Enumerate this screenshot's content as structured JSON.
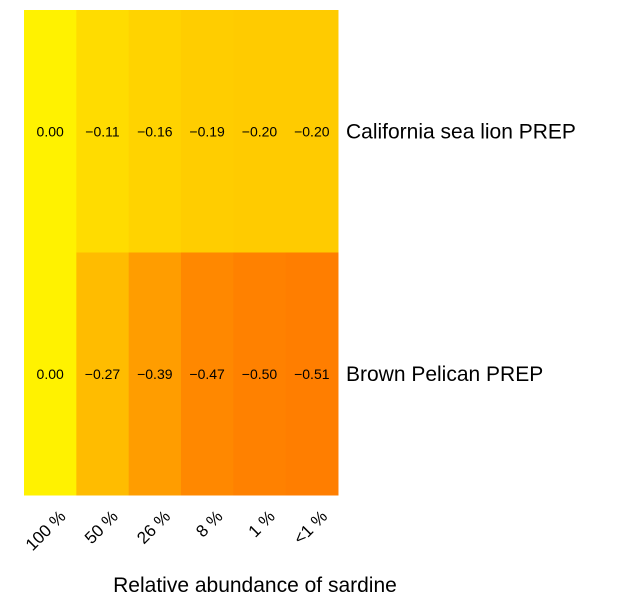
{
  "chart_data": {
    "type": "heatmap",
    "title": "",
    "xlabel": "Relative abundance of sardine",
    "ylabel": "",
    "x_categories": [
      "100 %",
      "50 %",
      "26 %",
      "8 %",
      "1 %",
      "<1 %"
    ],
    "y_categories": [
      "California sea lion PREP",
      "Brown Pelican PREP"
    ],
    "values": [
      [
        0.0,
        -0.11,
        -0.16,
        -0.19,
        -0.2,
        -0.2
      ],
      [
        0.0,
        -0.27,
        -0.39,
        -0.47,
        -0.5,
        -0.51
      ]
    ],
    "value_labels": [
      [
        "0.00",
        "−0.11",
        "−0.16",
        "−0.19",
        "−0.20",
        "−0.20"
      ],
      [
        "0.00",
        "−0.27",
        "−0.39",
        "−0.47",
        "−0.50",
        "−0.51"
      ]
    ],
    "color_scale": {
      "low_value": -0.51,
      "high_value": 0.0,
      "low_color": "#ff7e00",
      "mid_color": "#ffc000",
      "high_color": "#fff200"
    },
    "grid": false,
    "legend": "none"
  }
}
